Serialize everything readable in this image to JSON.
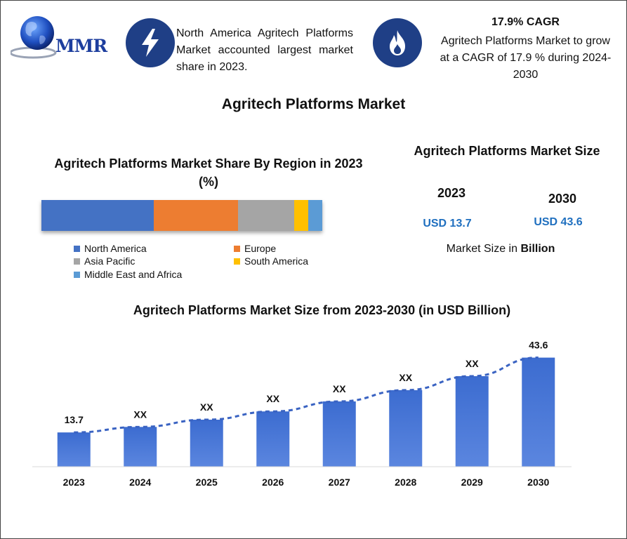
{
  "header": {
    "logo_text": "MMR",
    "region_text": "North America Agritech Platforms Market accounted largest market share in 2023.",
    "cagr_title": "17.9% CAGR",
    "cagr_text": "Agritech Platforms Market to grow at a CAGR of 17.9 % during 2024-2030",
    "colors": {
      "icon_circle": "#1f3f86",
      "logo": "#1d3e9e"
    },
    "icons": [
      "globe-icon",
      "lightning-bolt-icon",
      "flame-icon"
    ]
  },
  "main_title": "Agritech Platforms Market",
  "market_size": {
    "title": "Agritech Platforms Market Size",
    "year_start": "2023",
    "year_end": "2030",
    "value_start": "USD 13.7",
    "value_end": "USD 43.6",
    "note_prefix": "Market Size in ",
    "note_unit": "Billion"
  },
  "chart_data": [
    {
      "type": "bar",
      "stacked": true,
      "orientation": "horizontal",
      "title": "Agritech Platforms Market Share By Region in 2023 (%)",
      "series": [
        {
          "name": "North America",
          "value": 40,
          "color": "#4472c4"
        },
        {
          "name": "Europe",
          "value": 30,
          "color": "#ed7d31"
        },
        {
          "name": "Asia Pacific",
          "value": 20,
          "color": "#a5a5a5"
        },
        {
          "name": "South America",
          "value": 5,
          "color": "#ffc000"
        },
        {
          "name": "Middle East and Africa",
          "value": 5,
          "color": "#5b9bd5"
        }
      ],
      "legend_placement": "bottom"
    },
    {
      "type": "bar",
      "title": "Agritech Platforms Market Size from 2023-2030 (in USD Billion)",
      "categories": [
        "2023",
        "2024",
        "2025",
        "2026",
        "2027",
        "2028",
        "2029",
        "2030"
      ],
      "values": [
        13.7,
        15.9,
        18.8,
        22.1,
        26.1,
        30.6,
        36.2,
        43.6
      ],
      "data_labels": [
        "13.7",
        "XX",
        "XX",
        "XX",
        "XX",
        "XX",
        "XX",
        "43.6"
      ],
      "trend_line": "dashed",
      "ylim": [
        0,
        46
      ],
      "grid": false,
      "bar_color": "#4472c4"
    }
  ]
}
